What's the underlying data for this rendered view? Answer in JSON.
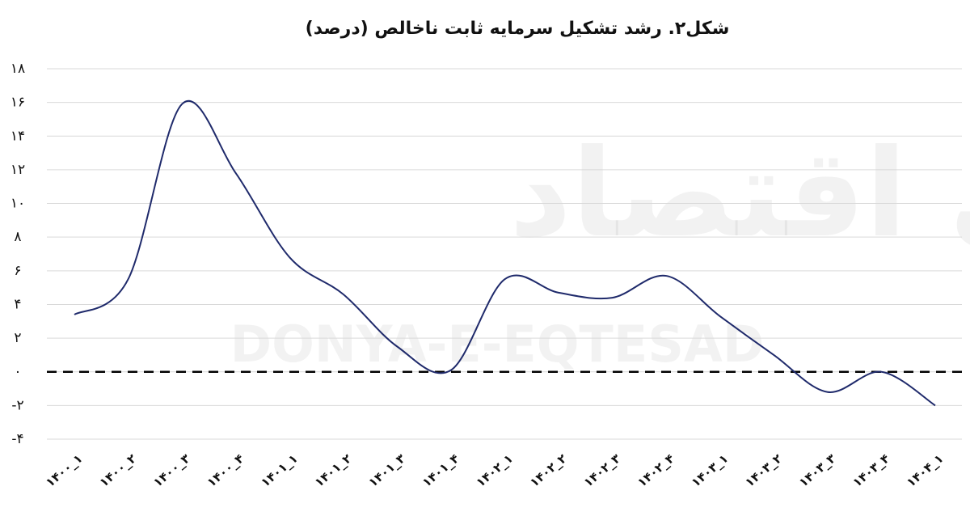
{
  "chart_data": {
    "type": "line",
    "title": "شکل۲. رشد تشکیل سرمایه ثابت ناخالص (درصد)",
    "watermark": [
      "دنیای اقتصاد",
      "DONYA-E-EQTESAD"
    ],
    "categories": [
      "۱۴۰۰_۱",
      "۱۴۰۰_۲",
      "۱۴۰۰_۳",
      "۱۴۰۰_۴",
      "۱۴۰۱_۱",
      "۱۴۰۱_۲",
      "۱۴۰۱_۳",
      "۱۴۰۱_۴",
      "۱۴۰۲_۱",
      "۱۴۰۲_۲",
      "۱۴۰۲_۳",
      "۱۴۰۲_۴",
      "۱۴۰۳_۱",
      "۱۴۰۳_۲",
      "۱۴۰۳_۳",
      "۱۴۰۳_۴",
      "۱۴۰۴_۱"
    ],
    "values": [
      3.4,
      5.5,
      15.9,
      11.8,
      6.8,
      4.6,
      1.5,
      0.1,
      5.5,
      4.7,
      4.4,
      5.7,
      3.3,
      1.0,
      -1.2,
      0,
      -2.0
    ],
    "color": "#1f2a6b",
    "ylim": [
      -4,
      18
    ],
    "yticks": [
      {
        "value": -4,
        "label": "-۴"
      },
      {
        "value": -2,
        "label": "-۲"
      },
      {
        "value": 0,
        "label": "۰"
      },
      {
        "value": 2,
        "label": "۲"
      },
      {
        "value": 4,
        "label": "۴"
      },
      {
        "value": 6,
        "label": "۶"
      },
      {
        "value": 8,
        "label": "۸"
      },
      {
        "value": 10,
        "label": "۱۰"
      },
      {
        "value": 12,
        "label": "۱۲"
      },
      {
        "value": 14,
        "label": "۱۴"
      },
      {
        "value": 16,
        "label": "۱۶"
      },
      {
        "value": 18,
        "label": "۱۸"
      }
    ],
    "grid": true
  }
}
